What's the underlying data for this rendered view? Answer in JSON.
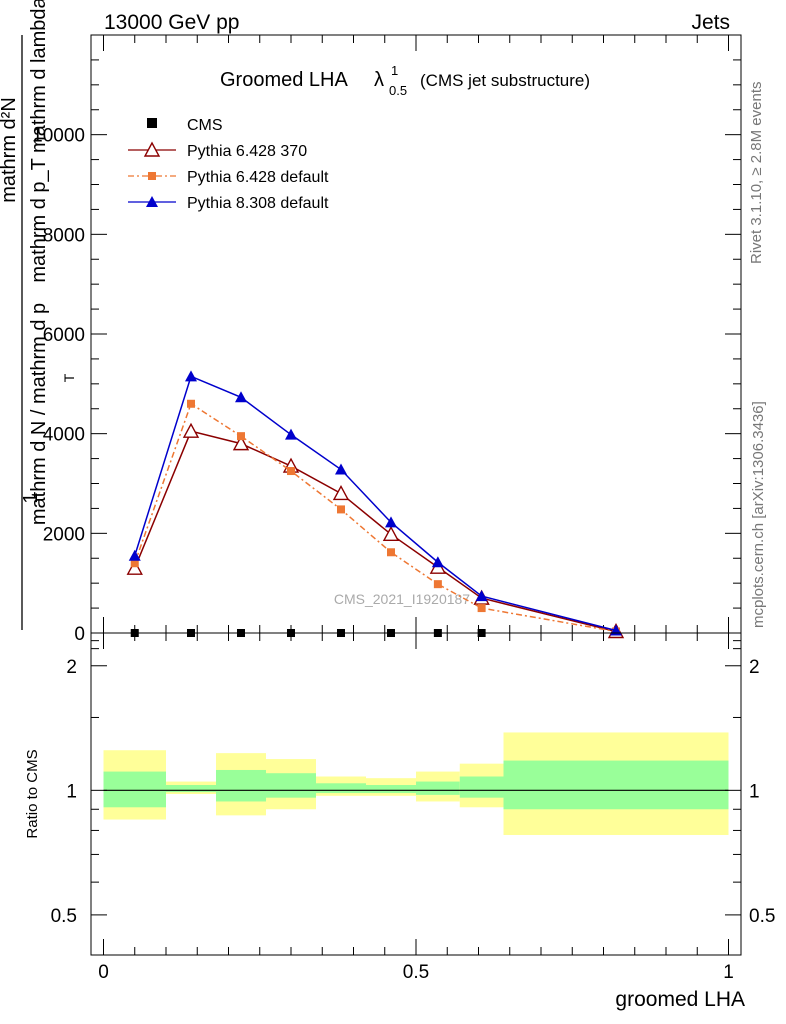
{
  "header": {
    "left": "13000 GeV pp",
    "right": "Jets"
  },
  "side": {
    "rivet": "Rivet 3.1.10, ≥ 2.8M events",
    "mcplots": "mcplots.cern.ch [arXiv:1306.3436]"
  },
  "chart_data": [
    {
      "type": "line",
      "title_main": "Groomed LHA",
      "title_symbol": "λ",
      "title_sup": "1",
      "title_sub": "0.5",
      "title_note": "(CMS jet substructure)",
      "ylabel_num": "mathrm d²N",
      "ylabel_den": "mathrm d p_T mathrm d lambda",
      "ylabel_sub": "T",
      "ylabel_prefix_num": "1",
      "ylabel_prefix_den": "mathrm d N / mathrm d p",
      "xlabel": "groomed LHA",
      "watermark": "CMS_2021_I1920187",
      "xlim": [
        -0.02,
        1.02
      ],
      "ylim": [
        0,
        12000
      ],
      "yticks": [
        0,
        2000,
        4000,
        6000,
        8000,
        10000
      ],
      "yticklabels": [
        "0",
        "2000",
        "4000",
        "6000",
        "8000",
        "10000"
      ],
      "legend_position": "top-left",
      "series": [
        {
          "name": "CMS",
          "color": "#000000",
          "marker": "square",
          "x": [
            0.05,
            0.14,
            0.22,
            0.3,
            0.38,
            0.46,
            0.535,
            0.605,
            0.82
          ],
          "y": [
            0,
            0,
            0,
            0,
            0,
            0,
            0,
            0,
            0
          ]
        },
        {
          "name": "Pythia 6.428 370",
          "color": "#8b0000",
          "marker": "open-triangle",
          "x": [
            0.05,
            0.14,
            0.22,
            0.3,
            0.38,
            0.46,
            0.535,
            0.605,
            0.82
          ],
          "y": [
            1300,
            4050,
            3800,
            3350,
            2800,
            1980,
            1320,
            700,
            30
          ]
        },
        {
          "name": "Pythia 6.428 default",
          "color": "#ee7733",
          "marker": "filled-square",
          "x": [
            0.05,
            0.14,
            0.22,
            0.3,
            0.38,
            0.46,
            0.535,
            0.605,
            0.82
          ],
          "y": [
            1400,
            4600,
            3950,
            3250,
            2480,
            1620,
            980,
            500,
            30
          ]
        },
        {
          "name": "Pythia 8.308 default",
          "color": "#0000cc",
          "marker": "filled-triangle",
          "x": [
            0.05,
            0.14,
            0.22,
            0.3,
            0.38,
            0.46,
            0.535,
            0.605,
            0.82
          ],
          "y": [
            1550,
            5150,
            4730,
            3980,
            3280,
            2220,
            1420,
            740,
            50
          ]
        }
      ]
    },
    {
      "type": "area",
      "ylabel": "Ratio to CMS",
      "xlabel": "groomed LHA",
      "ylim": [
        0.4,
        2.4
      ],
      "yticks": [
        0.5,
        1,
        2
      ],
      "yticklabels": [
        "0.5",
        "1",
        "2"
      ],
      "xticks": [
        0,
        0.5,
        1
      ],
      "xticklabels": [
        "0",
        "0.5",
        "1"
      ],
      "bins": [
        {
          "x0": 0.0,
          "x1": 0.1,
          "green": [
            0.91,
            1.11
          ],
          "yellow": [
            0.85,
            1.25
          ]
        },
        {
          "x0": 0.1,
          "x1": 0.18,
          "green": [
            0.99,
            1.03
          ],
          "yellow": [
            0.98,
            1.05
          ]
        },
        {
          "x0": 0.18,
          "x1": 0.26,
          "green": [
            0.94,
            1.12
          ],
          "yellow": [
            0.87,
            1.23
          ]
        },
        {
          "x0": 0.26,
          "x1": 0.34,
          "green": [
            0.96,
            1.1
          ],
          "yellow": [
            0.9,
            1.19
          ]
        },
        {
          "x0": 0.34,
          "x1": 0.42,
          "green": [
            0.985,
            1.04
          ],
          "yellow": [
            0.97,
            1.08
          ]
        },
        {
          "x0": 0.42,
          "x1": 0.5,
          "green": [
            0.985,
            1.03
          ],
          "yellow": [
            0.97,
            1.07
          ]
        },
        {
          "x0": 0.5,
          "x1": 0.57,
          "green": [
            0.975,
            1.05
          ],
          "yellow": [
            0.94,
            1.11
          ]
        },
        {
          "x0": 0.57,
          "x1": 0.64,
          "green": [
            0.96,
            1.08
          ],
          "yellow": [
            0.91,
            1.16
          ]
        },
        {
          "x0": 0.64,
          "x1": 1.0,
          "green": [
            0.9,
            1.18
          ],
          "yellow": [
            0.78,
            1.38
          ]
        }
      ]
    }
  ]
}
